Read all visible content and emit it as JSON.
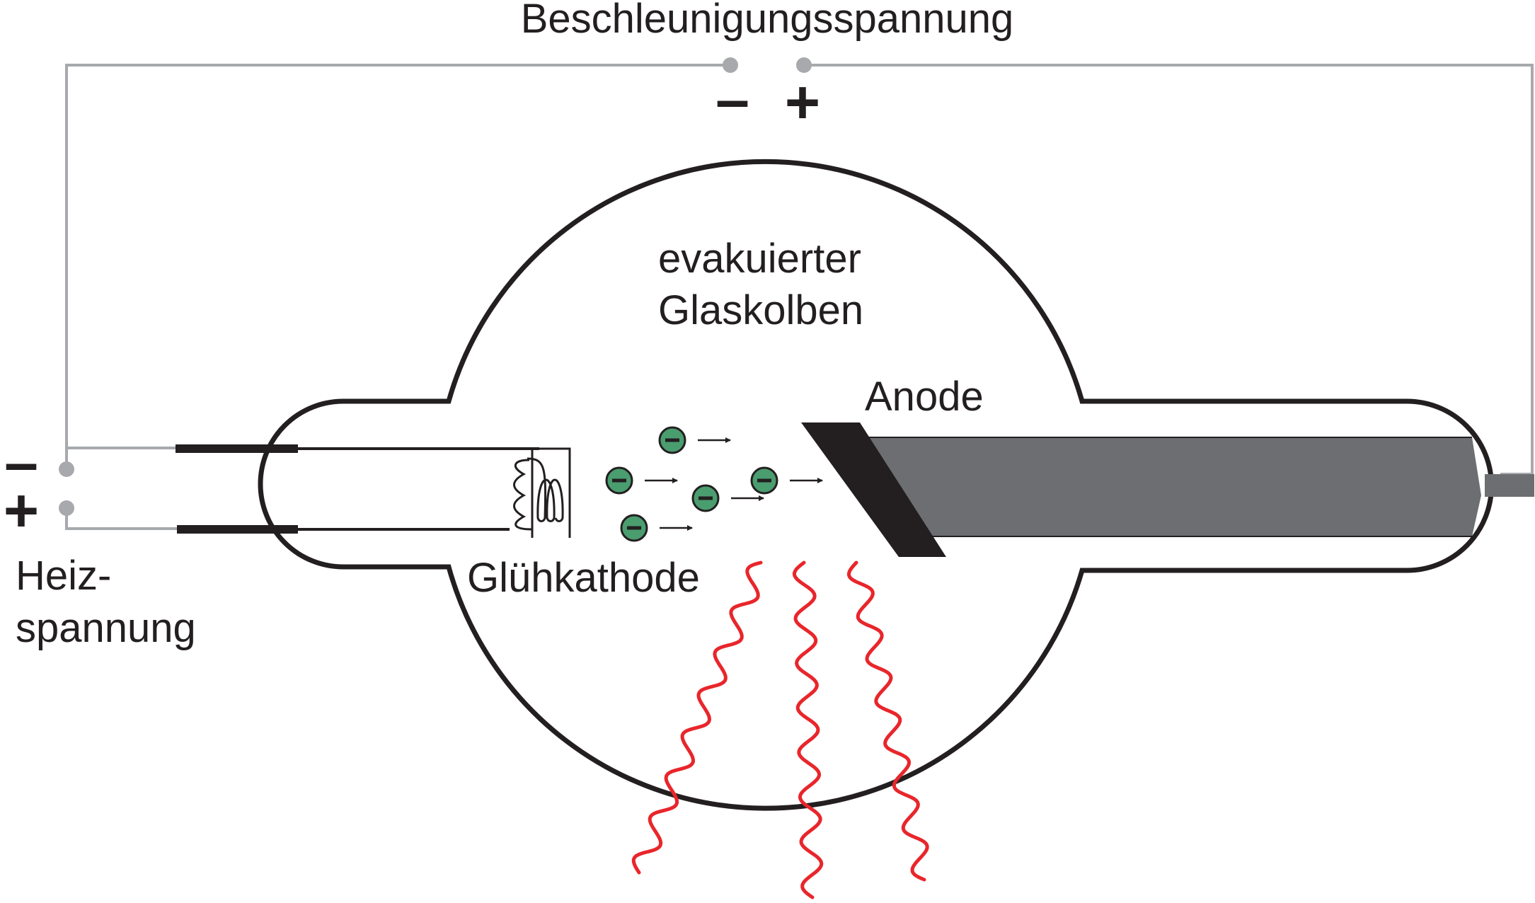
{
  "labels": {
    "accel_voltage": "Beschleunigungsspannung",
    "accel_minus": "–",
    "accel_plus": "+",
    "heat_minus": "–",
    "heat_plus": "+",
    "heat_voltage_line1": "Heiz-",
    "heat_voltage_line2": "spannung",
    "bulb_line1": "evakuierter",
    "bulb_line2": "Glaskolben",
    "anode": "Anode",
    "cathode": "Glühkathode"
  },
  "electron_sign": "–",
  "colors": {
    "outline": "#231f20",
    "wire": "#a7a9ac",
    "anode_body": "#6d6e71",
    "electron": "#4a9d6f",
    "xray": "#e8262b",
    "text": "#231f20"
  }
}
